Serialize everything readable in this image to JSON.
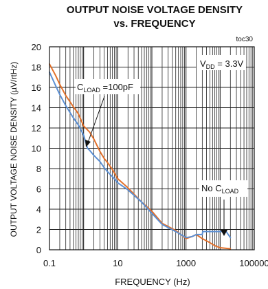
{
  "chart_data": {
    "type": "line",
    "title_line1": "OUTPUT NOISE VOLTAGE DENSITY",
    "title_line2": "vs. FREQUENCY",
    "tag": "toc30",
    "xlabel": "FREQUENCY (Hz)",
    "ylabel": "OUTPUT VOLTAGE NOISE DENSITY (µV/rtHz)",
    "x_scale": "log",
    "xlim": [
      0.1,
      100000
    ],
    "ylim": [
      0,
      20
    ],
    "x_ticks": [
      0.1,
      10,
      1000,
      100000
    ],
    "x_tick_labels": [
      "0.1",
      "10",
      "1000",
      "100000"
    ],
    "y_ticks": [
      0,
      2,
      4,
      6,
      8,
      10,
      12,
      14,
      16,
      18,
      20
    ],
    "y_tick_labels": [
      "0",
      "2",
      "4",
      "6",
      "8",
      "10",
      "12",
      "14",
      "16",
      "18",
      "20"
    ],
    "grid": true,
    "annotations": {
      "vdd_main": "V",
      "vdd_sub": "DD",
      "vdd_rest": " = 3.3V",
      "cload_main": "C",
      "cload_sub": "LOAD",
      "cload_rest": " =100pF",
      "nocload_main": "No C",
      "nocload_sub": "LOAD"
    },
    "series": [
      {
        "color": "#e2702a",
        "x": [
          0.1,
          0.15,
          0.2,
          0.3,
          0.5,
          0.7,
          1,
          1.5,
          2,
          3,
          4,
          5,
          7,
          10,
          20,
          50,
          100,
          200,
          500,
          1000,
          1500,
          2000,
          3000,
          5000,
          7000,
          10000,
          20000
        ],
        "y": [
          18.3,
          17.2,
          16.3,
          15.2,
          14.1,
          13.4,
          12.2,
          11.6,
          10.9,
          9.7,
          9.0,
          8.6,
          7.9,
          7.0,
          6.1,
          4.7,
          3.8,
          2.6,
          1.9,
          1.1,
          1.3,
          1.5,
          1.1,
          0.7,
          0.4,
          0.2,
          0.1
        ]
      },
      {
        "color": "#5b8fd3",
        "x": [
          0.1,
          0.15,
          0.2,
          0.3,
          0.5,
          0.7,
          1,
          1.3,
          1.5,
          2,
          3,
          4,
          5,
          7,
          10,
          20,
          50,
          100,
          200,
          500,
          1000,
          1500,
          2000,
          2500,
          3000,
          3100,
          4000,
          5000,
          6000,
          7000,
          10000,
          15000,
          20000
        ],
        "y": [
          17.5,
          16.2,
          15.3,
          14.2,
          13.0,
          12.3,
          11.3,
          10.0,
          9.8,
          9.3,
          8.7,
          8.1,
          7.7,
          7.2,
          6.6,
          5.9,
          4.7,
          3.6,
          2.5,
          1.8,
          1.2,
          1.3,
          1.5,
          1.5,
          1.5,
          1.8,
          1.8,
          1.8,
          1.8,
          1.8,
          1.8,
          1.8,
          1.2
        ]
      }
    ]
  }
}
